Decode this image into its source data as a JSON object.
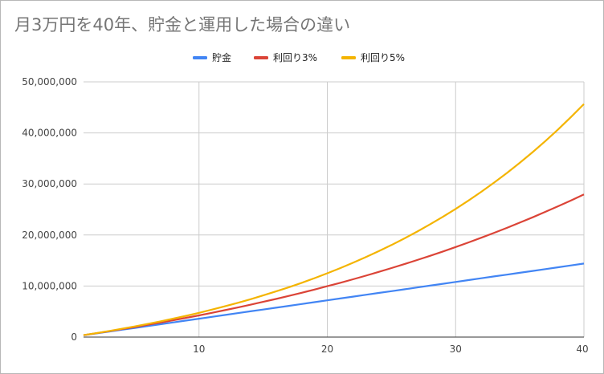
{
  "chart_data": {
    "type": "line",
    "title": "月3万円を40年、貯金と運用した場合の違い",
    "xlabel": "",
    "ylabel": "",
    "xlim": [
      1,
      40
    ],
    "ylim": [
      0,
      50000000
    ],
    "xticks": [
      10,
      20,
      30,
      40
    ],
    "xtick_labels": [
      "10",
      "20",
      "30",
      "40"
    ],
    "yticks": [
      0,
      10000000,
      20000000,
      30000000,
      40000000,
      50000000
    ],
    "ytick_labels": [
      "0",
      "10,000,000",
      "20,000,000",
      "30,000,000",
      "40,000,000",
      "50,000,000"
    ],
    "grid": true,
    "legend_position": "top-center",
    "x": [
      1,
      2,
      3,
      4,
      5,
      6,
      7,
      8,
      9,
      10,
      11,
      12,
      13,
      14,
      15,
      16,
      17,
      18,
      19,
      20,
      21,
      22,
      23,
      24,
      25,
      26,
      27,
      28,
      29,
      30,
      31,
      32,
      33,
      34,
      35,
      36,
      37,
      38,
      39,
      40
    ],
    "series": [
      {
        "name": "貯金",
        "color": "#4285f4",
        "values": [
          360000,
          720000,
          1080000,
          1440000,
          1800000,
          2160000,
          2520000,
          2880000,
          3240000,
          3600000,
          3960000,
          4320000,
          4680000,
          5040000,
          5400000,
          5760000,
          6120000,
          6480000,
          6840000,
          7200000,
          7560000,
          7920000,
          8280000,
          8640000,
          9000000,
          9360000,
          9720000,
          10080000,
          10440000,
          10800000,
          11160000,
          11520000,
          11880000,
          12240000,
          12600000,
          12960000,
          13320000,
          13680000,
          14040000,
          14400000
        ]
      },
      {
        "name": "利回り3%",
        "color": "#db4437",
        "values": [
          370800,
          752724,
          1146106,
          1551289,
          1968627,
          2398486,
          2841241,
          3297278,
          3766997,
          4250808,
          4749132,
          5262406,
          5791078,
          6335610,
          6896478,
          7474173,
          8069198,
          8682074,
          9313336,
          9963536,
          10633242,
          11323040,
          12033531,
          12765337,
          13519097,
          14295470,
          15095134,
          15918788,
          16767151,
          17640966,
          18540995,
          19468025,
          20422866,
          21406352,
          22419342,
          23462722,
          24537404,
          25644326,
          26784456,
          27958790
        ]
      },
      {
        "name": "利回り5%",
        "color": "#f4b400",
        "values": [
          378000,
          774900,
          1191645,
          1629227,
          2088688,
          2571123,
          3077679,
          3609563,
          4168041,
          4754443,
          5370165,
          6016673,
          6695507,
          7408282,
          8156696,
          8942531,
          9767657,
          10634040,
          11543742,
          12498929,
          13501876,
          14554970,
          15660718,
          16821754,
          18040842,
          19320884,
          20664928,
          22076175,
          23557983,
          25113882,
          26747577,
          28462955,
          30264103,
          32155308,
          34141074,
          36226127,
          38415434,
          40714205,
          43127916,
          45662312
        ]
      }
    ]
  }
}
